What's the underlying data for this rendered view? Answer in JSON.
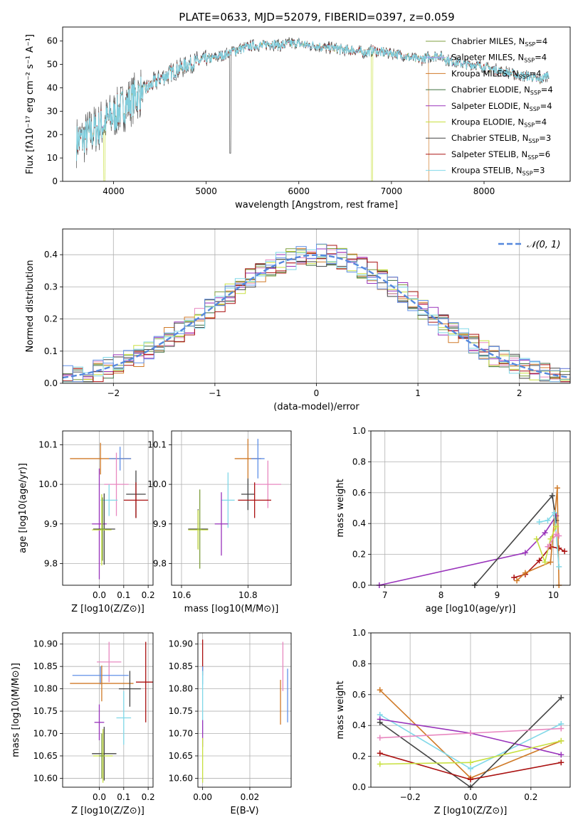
{
  "title": "PLATE=0633, MJD=52079, FIBERID=0397, z=0.059",
  "colors": {
    "chabrier_miles": "#7f9f3f",
    "salpeter_miles": "#b090e0",
    "kroupa_miles": "#d07a28",
    "chabrier_elodie": "#3f6f3f",
    "salpeter_elodie": "#9933bb",
    "kroupa_elodie": "#c8e040",
    "chabrier_stelib": "#444444",
    "salpeter_stelib": "#aa1111",
    "kroupa_stelib": "#80d8e8",
    "normal": "#5588dd",
    "pink": "#e888c0",
    "blue": "#6090e8"
  },
  "chart_data": [
    {
      "id": "spectrum",
      "type": "line",
      "xlabel": "wavelength [Angstrom, rest frame]",
      "ylabel": "Flux [fλ10⁻¹⁷ erg cm⁻² s⁻¹ A⁻¹]",
      "xlim": [
        3450,
        8930
      ],
      "ylim": [
        0,
        66
      ],
      "xticks": [
        4000,
        5000,
        6000,
        7000,
        8000
      ],
      "yticks": [
        0,
        10,
        20,
        30,
        40,
        50,
        60
      ],
      "legend_position": "top-right",
      "legend": [
        "Chabrier MILES, N_SSP=4",
        "Salpeter MILES, N_SSP=4",
        "Kroupa MILES, N_SSP=4",
        "Chabrier ELODIE, N_SSP=4",
        "Salpeter ELODIE, N_SSP=4",
        "Kroupa ELODIE, N_SSP=4",
        "Chabrier STELIB, N_SSP=3",
        "Salpeter STELIB, N_SSP=6",
        "Kroupa STELIB, N_SSP=3"
      ],
      "continuum": {
        "x": [
          3600,
          3700,
          3800,
          3900,
          4000,
          4100,
          4200,
          4300,
          4400,
          4500,
          4600,
          4700,
          4800,
          4900,
          5000,
          5100,
          5200,
          5300,
          5400,
          5500,
          5600,
          5700,
          5800,
          5900,
          6000,
          6100,
          6200,
          6300,
          6400,
          6500,
          6600,
          6700,
          6800,
          6900,
          7000,
          7100,
          7200,
          7300,
          7400,
          7500,
          7600,
          7700,
          7800,
          7900,
          8000,
          8100,
          8200,
          8300,
          8400,
          8500,
          8600,
          8700
        ],
        "y": [
          17,
          19,
          22,
          25,
          28,
          32,
          35,
          38,
          41,
          44,
          46,
          48,
          50,
          51,
          52,
          53,
          54,
          56,
          57,
          58,
          58,
          59,
          58,
          59,
          59,
          58,
          58,
          57,
          57,
          56,
          56,
          55,
          56,
          55,
          55,
          54,
          53,
          52,
          53,
          54,
          52,
          51,
          50,
          50,
          49,
          48,
          47,
          46,
          45,
          45,
          43,
          46
        ]
      },
      "notes": [
        "Kroupa ELODIE dips to 0 at 3900 and 6790 A",
        "Kroupa MILES drops to 0 after 7400 A"
      ]
    },
    {
      "id": "residuals",
      "type": "area",
      "xlabel": "(data-model)/error",
      "ylabel": "Normed distribution",
      "xlim": [
        -2.5,
        2.5
      ],
      "ylim": [
        0,
        0.48
      ],
      "xticks": [
        -2,
        -1,
        0,
        1,
        2
      ],
      "yticks": [
        0.0,
        0.1,
        0.2,
        0.3,
        0.4
      ],
      "legend": [
        "N(0,1)"
      ],
      "legend_position": "top-right",
      "bins": 50
    },
    {
      "id": "age_vs_Z",
      "type": "scatter",
      "xlabel": "Z [log10(Z/Z⊙)]",
      "ylabel": "age  [log10(age/yr)]",
      "xlim": [
        -0.15,
        0.22
      ],
      "ylim": [
        9.745,
        10.135
      ],
      "xticks": [
        0.0,
        0.1,
        0.2
      ],
      "yticks": [
        9.8,
        9.9,
        10.0,
        10.1
      ],
      "points": [
        {
          "c": "kroupa_miles",
          "x": 0.005,
          "y": 10.065,
          "xe": 0.125,
          "ye": 0.04
        },
        {
          "c": "blue",
          "x": 0.085,
          "y": 10.065,
          "xe": 0.045,
          "ye": 0.03
        },
        {
          "c": "pink",
          "x": 0.07,
          "y": 10.0,
          "xe": 0.05,
          "ye": 0.08
        },
        {
          "c": "chabrier_stelib",
          "x": 0.15,
          "y": 9.975,
          "xe": 0.04,
          "ye": 0.06
        },
        {
          "c": "salpeter_stelib",
          "x": 0.15,
          "y": 9.96,
          "xe": 0.05,
          "ye": 0.045
        },
        {
          "c": "kroupa_stelib",
          "x": 0.04,
          "y": 9.96,
          "xe": 0.035,
          "ye": 0.04
        },
        {
          "c": "salpeter_elodie",
          "x": 0.0,
          "y": 9.9,
          "xe": 0.03,
          "ye": 0.14
        },
        {
          "c": "chabrier_stelib",
          "x": 0.02,
          "y": 9.887,
          "xe": 0.045,
          "ye": 0.09
        },
        {
          "c": "kroupa_elodie",
          "x": 0.01,
          "y": 9.885,
          "xe": 0.04,
          "ye": 0.09
        },
        {
          "c": "chabrier_miles",
          "x": 0.013,
          "y": 9.887,
          "xe": 0.01,
          "ye": 0.08
        }
      ]
    },
    {
      "id": "age_vs_mass",
      "type": "scatter",
      "xlabel": "mass [log10(M/M⊙)]",
      "ylabel": "",
      "xlim": [
        10.57,
        10.93
      ],
      "ylim": [
        9.745,
        10.135
      ],
      "xticks": [
        10.6,
        10.8
      ],
      "yticks": [
        9.8,
        9.9,
        10.0,
        10.1
      ],
      "points": [
        {
          "c": "kroupa_miles",
          "x": 10.8,
          "y": 10.065,
          "xe": 0.04,
          "ye": 0.05
        },
        {
          "c": "blue",
          "x": 10.83,
          "y": 10.065,
          "xe": 0.02,
          "ye": 0.05
        },
        {
          "c": "pink",
          "x": 10.86,
          "y": 10.0,
          "xe": 0.04,
          "ye": 0.06
        },
        {
          "c": "chabrier_stelib",
          "x": 10.8,
          "y": 9.975,
          "xe": 0.02,
          "ye": 0.04
        },
        {
          "c": "salpeter_stelib",
          "x": 10.82,
          "y": 9.96,
          "xe": 0.05,
          "ye": 0.045
        },
        {
          "c": "kroupa_stelib",
          "x": 10.74,
          "y": 9.96,
          "xe": 0.02,
          "ye": 0.07
        },
        {
          "c": "salpeter_elodie",
          "x": 10.72,
          "y": 9.9,
          "xe": 0.02,
          "ye": 0.08
        },
        {
          "c": "chabrier_stelib",
          "x": 10.65,
          "y": 9.887,
          "xe": 0.03,
          "ye": 0.05
        },
        {
          "c": "kroupa_elodie",
          "x": 10.65,
          "y": 9.885,
          "xe": 0.03,
          "ye": 0.05
        },
        {
          "c": "chabrier_miles",
          "x": 10.655,
          "y": 9.887,
          "xe": 0.005,
          "ye": 0.1
        }
      ]
    },
    {
      "id": "mass_weight_vs_age",
      "type": "line",
      "xlabel": "age  [log10(age/yr)]",
      "ylabel": "mass weight",
      "xlim": [
        6.75,
        10.3
      ],
      "ylim": [
        0,
        1
      ],
      "xticks": [
        7,
        8,
        9,
        10
      ],
      "yticks": [
        0.0,
        0.2,
        0.4,
        0.6,
        0.8,
        1.0
      ],
      "series": [
        {
          "c": "salpeter_elodie",
          "x": [
            6.9,
            9.5,
            9.85,
            10.05
          ],
          "y": [
            0.0,
            0.21,
            0.34,
            0.45
          ]
        },
        {
          "c": "chabrier_stelib",
          "x": [
            8.6,
            9.98,
            10.05
          ],
          "y": [
            0.0,
            0.58,
            0.42
          ]
        },
        {
          "c": "salpeter_stelib",
          "x": [
            9.3,
            9.5,
            9.75,
            9.95,
            10.1,
            10.2
          ],
          "y": [
            0.05,
            0.07,
            0.16,
            0.25,
            0.24,
            0.22
          ]
        },
        {
          "c": "kroupa_miles",
          "x": [
            9.35,
            9.5,
            9.95,
            10.07,
            10.1
          ],
          "y": [
            0.03,
            0.08,
            0.15,
            0.63,
            0.0
          ]
        },
        {
          "c": "kroupa_stelib",
          "x": [
            9.75,
            9.9,
            10.02,
            10.1
          ],
          "y": [
            0.41,
            0.42,
            0.47,
            0.12
          ]
        },
        {
          "c": "kroupa_elodie",
          "x": [
            9.7,
            9.85,
            9.95,
            10.05
          ],
          "y": [
            0.3,
            0.15,
            0.3,
            0.38
          ]
        },
        {
          "c": "pink",
          "x": [
            9.9,
            10.05,
            10.1
          ],
          "y": [
            0.25,
            0.33,
            0.32
          ]
        }
      ]
    },
    {
      "id": "mass_vs_Z",
      "type": "scatter",
      "xlabel": "Z [log10(Z/Z⊙)]",
      "ylabel": "mass [log10(M/M⊙)]",
      "xlim": [
        -0.15,
        0.22
      ],
      "ylim": [
        10.58,
        10.925
      ],
      "xticks": [
        0.0,
        0.1,
        0.2
      ],
      "yticks": [
        10.6,
        10.65,
        10.7,
        10.75,
        10.8,
        10.85,
        10.9
      ],
      "points": [
        {
          "c": "pink",
          "x": 0.04,
          "y": 10.86,
          "xe": 0.05,
          "ye": 0.045
        },
        {
          "c": "blue",
          "x": 0.005,
          "y": 10.83,
          "xe": 0.115,
          "ye": 0.02
        },
        {
          "c": "kroupa_miles",
          "x": 0.01,
          "y": 10.812,
          "xe": 0.13,
          "ye": 0.04
        },
        {
          "c": "salpeter_stelib",
          "x": 0.19,
          "y": 10.815,
          "xe": 0.04,
          "ye": 0.09
        },
        {
          "c": "chabrier_stelib",
          "x": 0.125,
          "y": 10.8,
          "xe": 0.045,
          "ye": 0.04
        },
        {
          "c": "kroupa_stelib",
          "x": 0.1,
          "y": 10.735,
          "xe": 0.03,
          "ye": 0.06
        },
        {
          "c": "salpeter_elodie",
          "x": 0.0,
          "y": 10.725,
          "xe": 0.02,
          "ye": 0.04
        },
        {
          "c": "chabrier_stelib",
          "x": 0.02,
          "y": 10.655,
          "xe": 0.05,
          "ye": 0.06
        },
        {
          "c": "kroupa_elodie",
          "x": 0.015,
          "y": 10.65,
          "xe": 0.04,
          "ye": 0.06
        },
        {
          "c": "chabrier_miles",
          "x": 0.01,
          "y": 10.65,
          "xe": 0.01,
          "ye": 0.05
        }
      ]
    },
    {
      "id": "mass_vs_ebv",
      "type": "scatter",
      "xlabel": "E(B-V)",
      "ylabel": "",
      "xlim": [
        -0.002,
        0.0375
      ],
      "ylim": [
        10.58,
        10.925
      ],
      "xticks": [
        0.0,
        0.02
      ],
      "yticks": [
        10.6,
        10.65,
        10.7,
        10.75,
        10.8,
        10.85,
        10.9
      ],
      "points": [
        {
          "c": "salpeter_stelib",
          "x": 0.0,
          "y": 10.87,
          "xe": 0,
          "ye": 0.04
        },
        {
          "c": "blue",
          "x": 0.0,
          "y": 10.83,
          "xe": 0,
          "ye": 0.02
        },
        {
          "c": "kroupa_stelib",
          "x": 0.0,
          "y": 10.77,
          "xe": 0,
          "ye": 0.07
        },
        {
          "c": "salpeter_elodie",
          "x": 0.0,
          "y": 10.7,
          "xe": 0,
          "ye": 0.03
        },
        {
          "c": "kroupa_elodie",
          "x": 0.0,
          "y": 10.64,
          "xe": 0,
          "ye": 0.05
        },
        {
          "c": "pink",
          "x": 0.034,
          "y": 10.85,
          "xe": 0,
          "ye": 0.055
        },
        {
          "c": "kroupa_miles",
          "x": 0.033,
          "y": 10.77,
          "xe": 0,
          "ye": 0.05
        },
        {
          "c": "blue",
          "x": 0.036,
          "y": 10.785,
          "xe": 0,
          "ye": 0.06
        }
      ]
    },
    {
      "id": "mass_weight_vs_Z",
      "type": "line",
      "xlabel": "Z [log10(Z/Z⊙)]",
      "ylabel": "mass weight",
      "xlim": [
        -0.33,
        0.33
      ],
      "ylim": [
        0,
        1
      ],
      "xticks": [
        -0.2,
        0.0,
        0.2
      ],
      "yticks": [
        0.0,
        0.2,
        0.4,
        0.6,
        0.8,
        1.0
      ],
      "series": [
        {
          "c": "kroupa_miles",
          "x": [
            -0.3,
            0.0,
            0.3
          ],
          "y": [
            0.63,
            0.06,
            0.3
          ]
        },
        {
          "c": "kroupa_stelib",
          "x": [
            -0.3,
            0.0,
            0.3
          ],
          "y": [
            0.47,
            0.12,
            0.41
          ]
        },
        {
          "c": "salpeter_elodie",
          "x": [
            -0.3,
            0.0,
            0.3
          ],
          "y": [
            0.44,
            0.35,
            0.21
          ]
        },
        {
          "c": "chabrier_stelib",
          "x": [
            -0.3,
            0.0,
            0.3
          ],
          "y": [
            0.42,
            0.0,
            0.58
          ]
        },
        {
          "c": "pink",
          "x": [
            -0.3,
            0.0,
            0.3
          ],
          "y": [
            0.32,
            0.35,
            0.38
          ]
        },
        {
          "c": "salpeter_stelib",
          "x": [
            -0.3,
            0.0,
            0.3
          ],
          "y": [
            0.22,
            0.05,
            0.16
          ]
        },
        {
          "c": "kroupa_elodie",
          "x": [
            -0.3,
            0.0,
            0.3
          ],
          "y": [
            0.15,
            0.16,
            0.3
          ]
        }
      ]
    }
  ]
}
